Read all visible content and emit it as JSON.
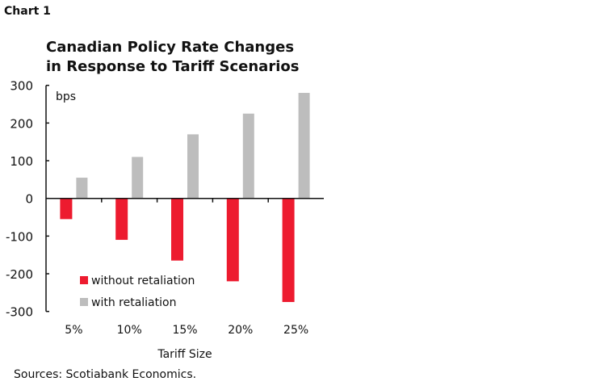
{
  "label": "Chart 1",
  "source": "Sources: Scotiabank Economics.",
  "chart_data": {
    "type": "bar",
    "title": [
      "Canadian Policy Rate Changes",
      "in Response to Tariff Scenarios"
    ],
    "ylabel": "bps",
    "xlabel": "Tariff Size",
    "categories": [
      "5%",
      "10%",
      "15%",
      "20%",
      "25%"
    ],
    "ylim": [
      -300,
      300
    ],
    "yticks": [
      300,
      200,
      100,
      0,
      -100,
      -200,
      -300
    ],
    "grid": false,
    "legend_position": "bottom-left",
    "series": [
      {
        "name": "without retaliation",
        "color": "#ED1B2F",
        "values": [
          -55,
          -110,
          -165,
          -220,
          -275
        ]
      },
      {
        "name": "with retaliation",
        "color": "#BDBDBD",
        "values": [
          55,
          110,
          170,
          225,
          280
        ]
      }
    ]
  }
}
